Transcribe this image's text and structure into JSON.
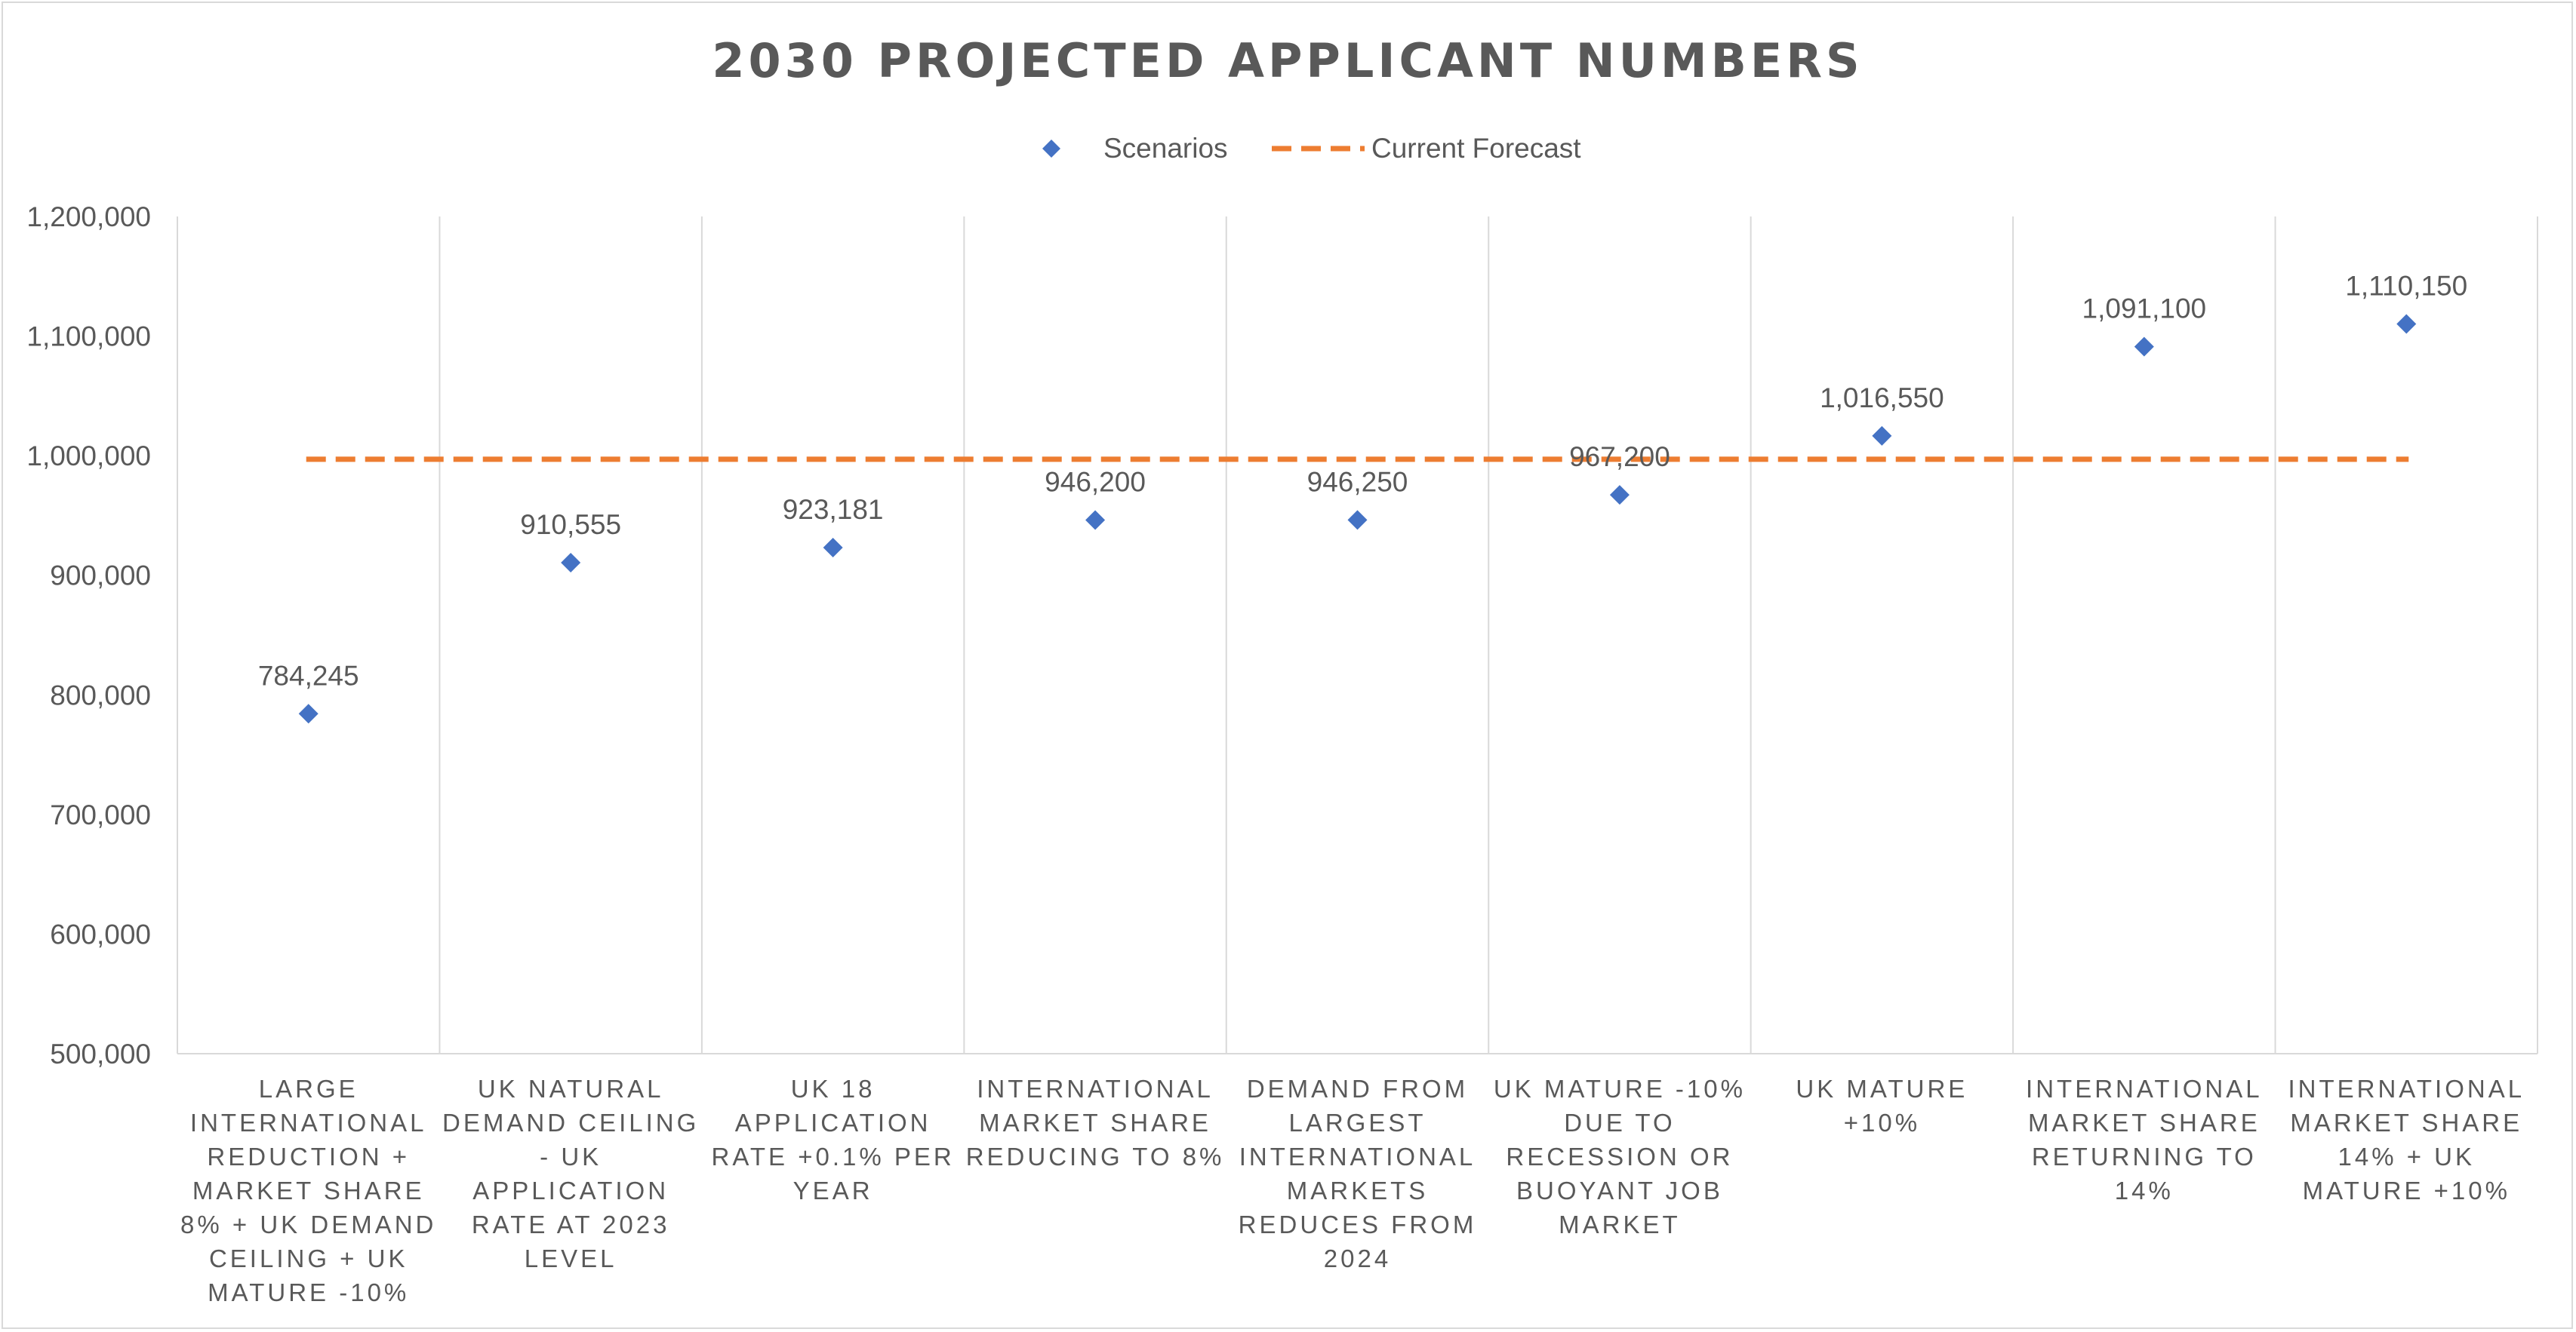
{
  "chart_data": {
    "type": "scatter",
    "title": "2030 PROJECTED APPLICANT NUMBERS",
    "categories": [
      [
        "LARGE",
        "INTERNATIONAL",
        "REDUCTION +",
        "MARKET SHARE",
        "8% + UK DEMAND",
        "CEILING + UK",
        "MATURE -10%"
      ],
      [
        "UK NATURAL",
        "DEMAND CEILING",
        "- UK",
        "APPLICATION",
        "RATE AT 2023",
        "LEVEL"
      ],
      [
        "UK 18",
        "APPLICATION",
        "RATE +0.1% PER",
        "YEAR"
      ],
      [
        "INTERNATIONAL",
        "MARKET SHARE",
        "REDUCING TO 8%"
      ],
      [
        "DEMAND FROM",
        "LARGEST",
        "INTERNATIONAL",
        "MARKETS",
        "REDUCES FROM",
        "2024"
      ],
      [
        "UK MATURE -10%",
        "DUE TO",
        "RECESSION OR",
        "BUOYANT JOB",
        "MARKET"
      ],
      [
        "UK MATURE",
        "+10%"
      ],
      [
        "INTERNATIONAL",
        "MARKET SHARE",
        "RETURNING TO",
        "14%"
      ],
      [
        "INTERNATIONAL",
        "MARKET SHARE",
        "14% + UK",
        "MATURE +10%"
      ]
    ],
    "series": [
      {
        "name": "Scenarios",
        "marker": "diamond",
        "color": "#4472C4",
        "values": [
          784245,
          910555,
          923181,
          946200,
          946250,
          967200,
          1016550,
          1091100,
          1110150
        ],
        "labels": [
          "784,245",
          "910,555",
          "923,181",
          "946,200",
          "946,250",
          "967,200",
          "1,016,550",
          "1,091,100",
          "1,110,150"
        ]
      },
      {
        "name": "Current Forecast",
        "style": "dashed",
        "color": "#ED7D31",
        "values": [
          997000,
          997000,
          997000,
          997000,
          997000,
          997000,
          997000,
          997000,
          997000
        ]
      }
    ],
    "ylim": [
      500000,
      1200000
    ],
    "yticks": [
      500000,
      600000,
      700000,
      800000,
      900000,
      1000000,
      1100000,
      1200000
    ],
    "ytick_labels": [
      "500,000",
      "600,000",
      "700,000",
      "800,000",
      "900,000",
      "1,000,000",
      "1,100,000",
      "1,200,000"
    ],
    "legend_position": "top",
    "grid": "vertical category separators"
  }
}
